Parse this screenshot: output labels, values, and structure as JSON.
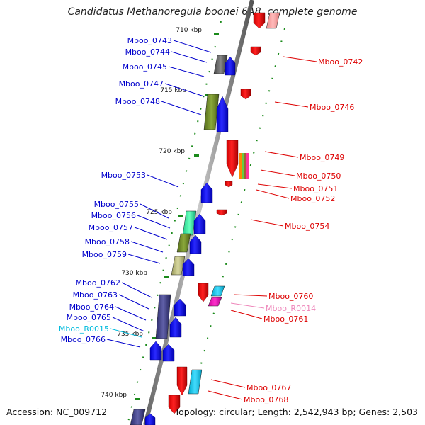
{
  "title": "Candidatus Methanoregula boonei 6A8, complete genome",
  "footer": {
    "accession": "Accession: NC_009712",
    "topology": "Topology: circular; Length: 2,542,943 bp; Genes: 2,503"
  },
  "colors": {
    "backbone": "#8a8a8a",
    "tick": "#1a8a1a",
    "plus_label": "#0000cc",
    "minus_label": "#dd0000",
    "rna_plus_label": "#00bbdd",
    "rna_minus_label": "#ee88bb"
  },
  "ruler": [
    {
      "label": "710 kbp"
    },
    {
      "label": "715 kbp"
    },
    {
      "label": "720 kbp"
    },
    {
      "label": "725 kbp"
    },
    {
      "label": "730 kbp"
    },
    {
      "label": "735 kbp"
    },
    {
      "label": "740 kbp"
    }
  ],
  "plus_genes": [
    {
      "label": "Mboo_0743",
      "kind": "cds"
    },
    {
      "label": "Mboo_0744",
      "kind": "cds"
    },
    {
      "label": "Mboo_0745",
      "kind": "cds"
    },
    {
      "label": "Mboo_0747",
      "kind": "cds"
    },
    {
      "label": "Mboo_0748",
      "kind": "cds"
    },
    {
      "label": "Mboo_0753",
      "kind": "cds"
    },
    {
      "label": "Mboo_0755",
      "kind": "cds"
    },
    {
      "label": "Mboo_0756",
      "kind": "cds"
    },
    {
      "label": "Mboo_0757",
      "kind": "cds"
    },
    {
      "label": "Mboo_0758",
      "kind": "cds"
    },
    {
      "label": "Mboo_0759",
      "kind": "cds"
    },
    {
      "label": "Mboo_0762",
      "kind": "cds"
    },
    {
      "label": "Mboo_0763",
      "kind": "cds"
    },
    {
      "label": "Mboo_0764",
      "kind": "cds"
    },
    {
      "label": "Mboo_0765",
      "kind": "cds"
    },
    {
      "label": "Mboo_R0015",
      "kind": "rna"
    },
    {
      "label": "Mboo_0766",
      "kind": "cds"
    }
  ],
  "minus_genes": [
    {
      "label": "Mboo_0742",
      "kind": "cds"
    },
    {
      "label": "Mboo_0746",
      "kind": "cds"
    },
    {
      "label": "Mboo_0749",
      "kind": "cds"
    },
    {
      "label": "Mboo_0750",
      "kind": "cds"
    },
    {
      "label": "Mboo_0751",
      "kind": "cds"
    },
    {
      "label": "Mboo_0752",
      "kind": "cds"
    },
    {
      "label": "Mboo_0754",
      "kind": "cds"
    },
    {
      "label": "Mboo_0760",
      "kind": "cds"
    },
    {
      "label": "Mboo_R0014",
      "kind": "rna"
    },
    {
      "label": "Mboo_0761",
      "kind": "cds"
    },
    {
      "label": "Mboo_0767",
      "kind": "cds"
    },
    {
      "label": "Mboo_0768",
      "kind": "cds"
    }
  ]
}
